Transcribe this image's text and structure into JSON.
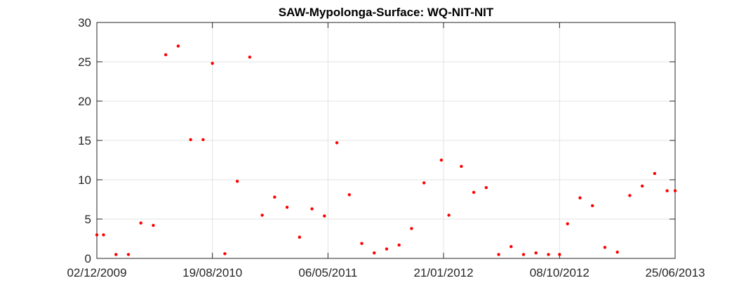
{
  "chart_data": {
    "type": "scatter",
    "title": "SAW-Mypolonga-Surface: WQ-NIT-NIT",
    "xlabel": "",
    "ylabel": "",
    "x_axis_type": "date",
    "xlim": [
      "2009-12-02",
      "2013-06-25"
    ],
    "ylim": [
      0,
      30
    ],
    "x_ticks": [
      "2009-12-02",
      "2010-08-19",
      "2011-05-06",
      "2012-01-21",
      "2012-10-08",
      "2013-06-25"
    ],
    "x_tick_labels": [
      "02/12/2009",
      "19/08/2010",
      "06/05/2011",
      "21/01/2012",
      "08/10/2012",
      "25/06/2013"
    ],
    "y_ticks": [
      0,
      5,
      10,
      15,
      20,
      25,
      30
    ],
    "y_tick_labels": [
      "0",
      "5",
      "10",
      "15",
      "20",
      "25",
      "30"
    ],
    "grid": true,
    "marker_color": "#ff0000",
    "series": [
      {
        "x": [
          "2009-12-02",
          "2009-12-17",
          "2010-01-14",
          "2010-02-11",
          "2010-03-11",
          "2010-04-08",
          "2010-05-06",
          "2010-06-03",
          "2010-07-01",
          "2010-07-29",
          "2010-08-19",
          "2010-09-16",
          "2010-10-14",
          "2010-11-11",
          "2010-12-09",
          "2011-01-06",
          "2011-02-03",
          "2011-03-03",
          "2011-03-31",
          "2011-04-28",
          "2011-05-26",
          "2011-06-23",
          "2011-07-21",
          "2011-08-18",
          "2011-09-15",
          "2011-10-13",
          "2011-11-10",
          "2011-12-08",
          "2012-01-16",
          "2012-02-02",
          "2012-03-01",
          "2012-03-29",
          "2012-04-26",
          "2012-05-24",
          "2012-06-21",
          "2012-07-19",
          "2012-08-16",
          "2012-09-13",
          "2012-10-08",
          "2012-10-26",
          "2012-11-23",
          "2012-12-21",
          "2013-01-18",
          "2013-02-15",
          "2013-03-15",
          "2013-04-12",
          "2013-05-10",
          "2013-06-07",
          "2013-06-25"
        ],
        "y": [
          3.0,
          3.0,
          0.5,
          0.5,
          4.5,
          4.2,
          25.9,
          27.0,
          15.1,
          15.1,
          24.8,
          0.6,
          9.8,
          25.6,
          5.5,
          7.8,
          6.5,
          2.7,
          6.3,
          5.4,
          14.7,
          8.1,
          1.9,
          0.7,
          1.2,
          1.7,
          3.8,
          9.6,
          12.5,
          5.5,
          11.7,
          8.4,
          9.0,
          0.5,
          1.5,
          0.5,
          0.7,
          0.5,
          0.5,
          4.4,
          7.7,
          6.7,
          1.4,
          0.8,
          8.0,
          9.2,
          10.8,
          8.6,
          8.6
        ]
      }
    ]
  }
}
